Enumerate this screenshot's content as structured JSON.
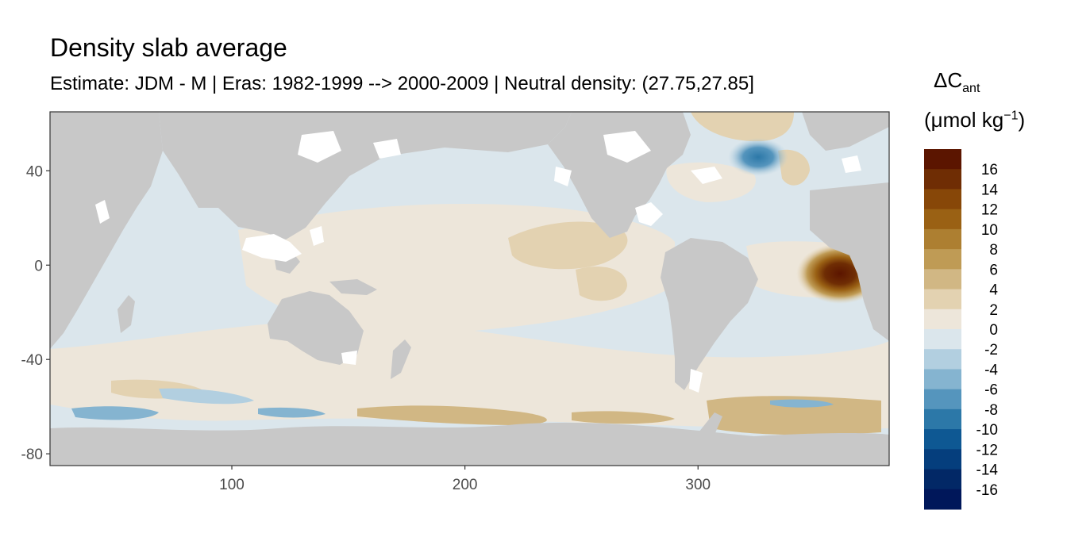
{
  "title": "Density slab average",
  "subtitle": "Estimate: JDM - M | Eras: 1982-1999 --> 2000-2009 | Neutral density: (27.75,27.85]",
  "map": {
    "x_ticks": [
      100,
      200,
      300
    ],
    "y_ticks": [
      40,
      0,
      -40,
      -80
    ],
    "xlim": [
      22,
      382
    ],
    "ylim": [
      -85,
      65
    ],
    "land_color": "#c8c8c8"
  },
  "legend": {
    "symbol": "ΔC",
    "subscript": "ant",
    "unit_open": "(μmol kg",
    "unit_sup": "−1",
    "unit_close": ")",
    "bins": [
      {
        "label": "16",
        "color": "#5b1500"
      },
      {
        "label": "14",
        "color": "#6f2d04"
      },
      {
        "label": "12",
        "color": "#874708"
      },
      {
        "label": "10",
        "color": "#9a6114"
      },
      {
        "label": "8",
        "color": "#ad7f31"
      },
      {
        "label": "6",
        "color": "#bf9b55"
      },
      {
        "label": "4",
        "color": "#d1b784"
      },
      {
        "label": "2",
        "color": "#e3d2b1"
      },
      {
        "label": "0",
        "color": "#ede6da"
      },
      {
        "label": "-2",
        "color": "#dbe6ec"
      },
      {
        "label": "-4",
        "color": "#b2cfe0"
      },
      {
        "label": "-6",
        "color": "#85b4d0"
      },
      {
        "label": "-8",
        "color": "#5595bd"
      },
      {
        "label": "-10",
        "color": "#2c78a8"
      },
      {
        "label": "-12",
        "color": "#0e5893"
      },
      {
        "label": "-14",
        "color": "#053e7d"
      },
      {
        "label": "-16",
        "color": "#022866"
      },
      {
        "label": "",
        "color": "#00175a"
      }
    ]
  }
}
